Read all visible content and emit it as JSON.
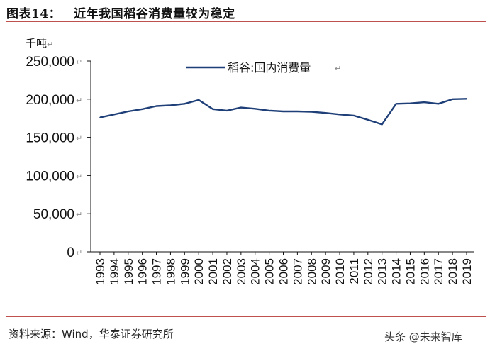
{
  "figure": {
    "label": "图表14：",
    "title": "近年我国稻谷消费量较为稳定",
    "source": "资料来源：Wind，华泰证券研究所",
    "watermark": "头条 @未来智库"
  },
  "chart_data": {
    "type": "line",
    "title": "近年我国稻谷消费量较为稳定",
    "ylabel": "千吨",
    "xlabel": "",
    "ylim": [
      0,
      250000
    ],
    "yticks": [
      0,
      50000,
      100000,
      150000,
      200000,
      250000
    ],
    "ytick_labels": [
      "0",
      "50,000",
      "100,000",
      "150,000",
      "200,000",
      "250,000"
    ],
    "x": [
      "1993",
      "1994",
      "1995",
      "1996",
      "1997",
      "1998",
      "1999",
      "2000",
      "2001",
      "2002",
      "2003",
      "2004",
      "2005",
      "2006",
      "2007",
      "2008",
      "2009",
      "2010",
      "2011",
      "2012",
      "2013",
      "2014",
      "2015",
      "2016",
      "2017",
      "2018",
      "2019"
    ],
    "series": [
      {
        "name": "稻谷:国内消费量",
        "color": "#1f3f78",
        "values": [
          176000,
          180000,
          184000,
          187000,
          191000,
          192000,
          194000,
          199000,
          187000,
          185000,
          189000,
          187500,
          185000,
          184000,
          184000,
          183500,
          182000,
          180000,
          178500,
          173000,
          167000,
          194000,
          194500,
          196000,
          194000,
          200000,
          200500
        ]
      }
    ],
    "legend_position": "top-center",
    "grid": false
  }
}
